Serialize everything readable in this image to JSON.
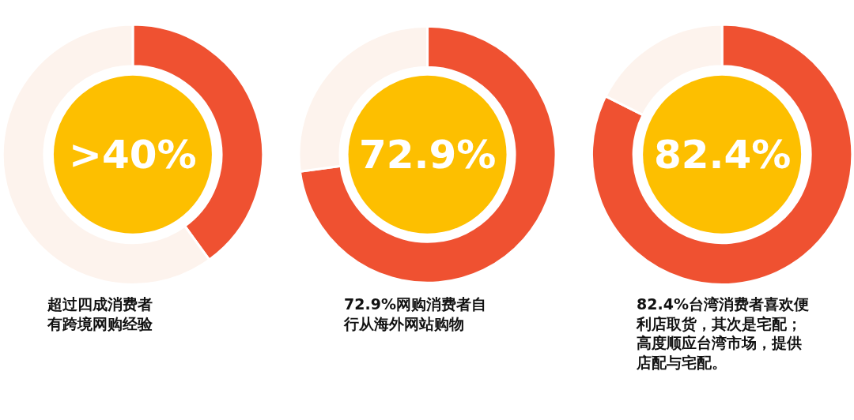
{
  "chart_data": [
    {
      "type": "donut",
      "categories": [
        null,
        null
      ],
      "values": [
        40,
        60
      ],
      "colors": [
        "#ef5131",
        "#fdf3ed"
      ],
      "annotations": [
        ">40%",
        "超过四成消费者有跨境网购经验"
      ]
    },
    {
      "type": "donut",
      "categories": [
        null,
        null
      ],
      "values": [
        72.9,
        27.1
      ],
      "colors": [
        "#ef5131",
        "#fdf3ed"
      ],
      "annotations": [
        "72.9%",
        "72.9%网购消费者自行从海外网站购物"
      ]
    },
    {
      "type": "donut",
      "categories": [
        null,
        null
      ],
      "values": [
        82.4,
        17.6
      ],
      "colors": [
        "#ef5131",
        "#fdf3ed"
      ],
      "annotations": [
        "82.4%",
        "82.4%台湾消费者喜欢便利店取货，其次是宅配；高度顺应台湾市场，提供店配与宅配。"
      ]
    }
  ]
}
